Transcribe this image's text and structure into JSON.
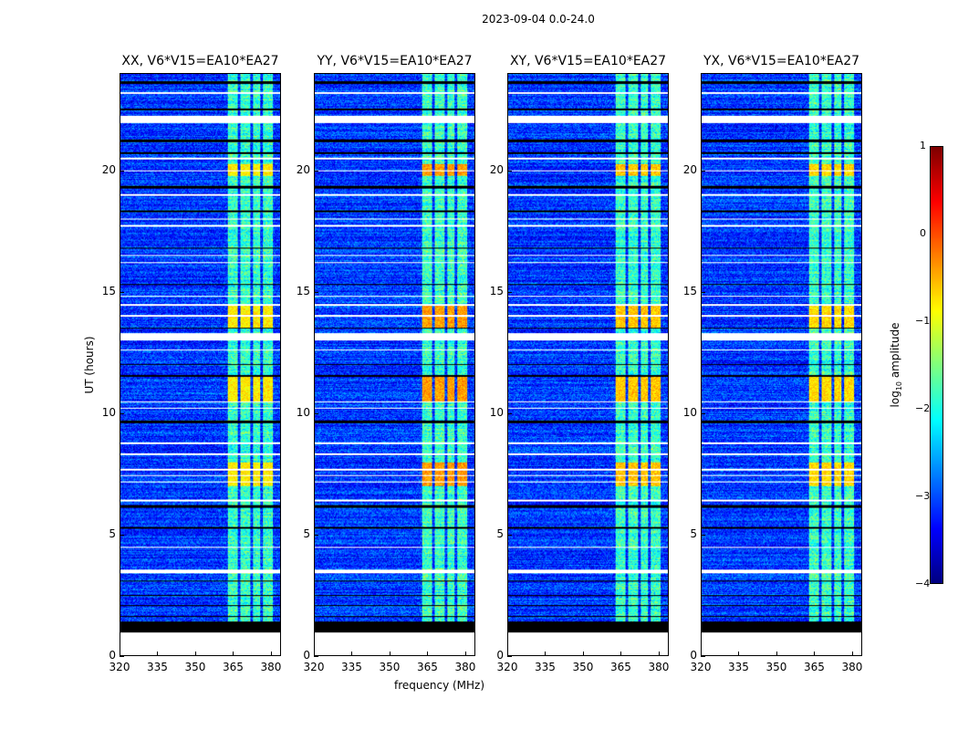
{
  "chart_data": {
    "type": "heatmap",
    "title": "2023-09-04 0.0-24.0",
    "xlabel": "frequency (MHz)",
    "ylabel": "UT (hours)",
    "xlim": [
      320,
      384
    ],
    "ylim": [
      0,
      24
    ],
    "xticks": [
      320,
      335,
      350,
      365,
      380
    ],
    "yticks": [
      0,
      5,
      10,
      15,
      20
    ],
    "colorbar": {
      "label_prefix": "log",
      "label_sub": "10",
      "label_suffix": " amplitude",
      "range": [
        -4,
        1
      ],
      "ticks": [
        "1",
        "0",
        "−1",
        "−2",
        "−3",
        "−4"
      ],
      "colormap": "jet"
    },
    "panels": [
      {
        "title": "XX, V6*V15=EA10*EA27",
        "peak": -0.8
      },
      {
        "title": "YY, V6*V15=EA10*EA27",
        "peak": -0.4
      },
      {
        "title": "XY, V6*V15=EA10*EA27",
        "peak": -0.6
      },
      {
        "title": "YX, V6*V15=EA10*EA27",
        "peak": -0.7
      }
    ],
    "data_start_hours": 0.95,
    "flagged_black_hours": [
      [
        0.95,
        1.4
      ],
      [
        1.6,
        1.65
      ],
      [
        2.05,
        2.1
      ],
      [
        2.45,
        2.5
      ],
      [
        3.05,
        3.1
      ],
      [
        5.25,
        5.3
      ],
      [
        6.1,
        6.2
      ],
      [
        9.6,
        9.7
      ],
      [
        11.5,
        11.6
      ],
      [
        12.0,
        12.05
      ],
      [
        13.5,
        13.55
      ],
      [
        15.3,
        15.35
      ],
      [
        16.8,
        16.85
      ],
      [
        18.3,
        18.4
      ],
      [
        19.3,
        19.4
      ],
      [
        20.7,
        20.8
      ],
      [
        21.2,
        21.3
      ],
      [
        22.5,
        22.6
      ],
      [
        23.6,
        23.7
      ]
    ],
    "flagged_white_hours": [
      [
        3.4,
        3.55
      ],
      [
        4.45,
        4.5
      ],
      [
        6.35,
        6.45
      ],
      [
        7.15,
        7.2
      ],
      [
        7.4,
        7.45
      ],
      [
        7.65,
        7.7
      ],
      [
        8.3,
        8.35
      ],
      [
        8.75,
        8.8
      ],
      [
        10.2,
        10.25
      ],
      [
        10.45,
        10.5
      ],
      [
        12.6,
        12.65
      ],
      [
        13.0,
        13.3
      ],
      [
        14.0,
        14.05
      ],
      [
        14.45,
        14.5
      ],
      [
        14.8,
        14.85
      ],
      [
        16.2,
        16.25
      ],
      [
        16.5,
        16.55
      ],
      [
        17.7,
        17.8
      ],
      [
        18.0,
        18.05
      ],
      [
        19.0,
        19.05
      ],
      [
        20.0,
        20.05
      ],
      [
        20.5,
        20.55
      ],
      [
        22.0,
        22.3
      ],
      [
        23.2,
        23.25
      ]
    ],
    "rfi_bands_mhz": [
      [
        363,
        367
      ],
      [
        368,
        372
      ],
      [
        373,
        376
      ],
      [
        377,
        381
      ]
    ],
    "bright_hours": [
      [
        7.0,
        8.0
      ],
      [
        13.5,
        14.5
      ],
      [
        19.8,
        20.3
      ],
      [
        10.5,
        11.5
      ]
    ]
  }
}
